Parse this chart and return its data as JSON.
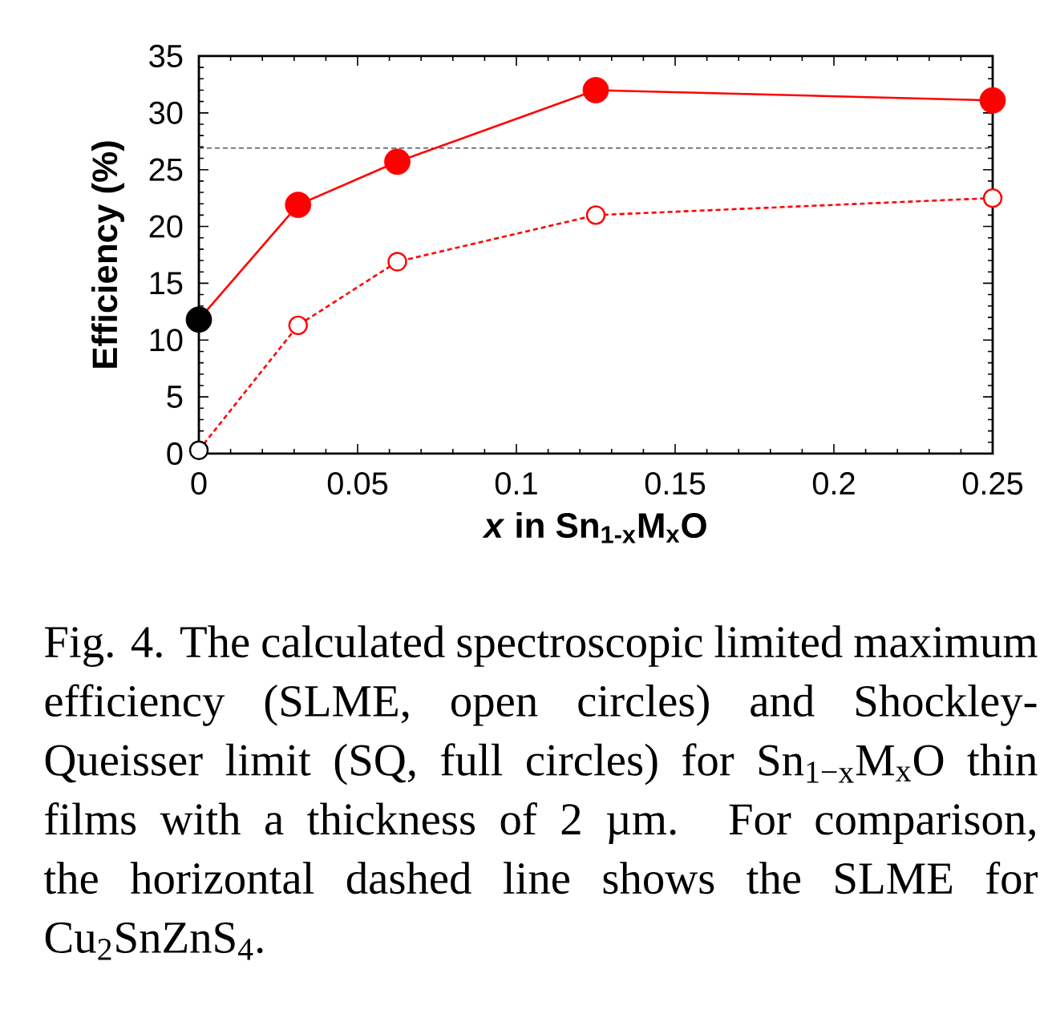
{
  "chart_data": {
    "type": "line",
    "xlabel": "*x* in Sn$_{1-x}$M$_{x}$O",
    "ylabel": "Efficiency (%)",
    "x": [
      0,
      0.03125,
      0.0625,
      0.125,
      0.25
    ],
    "series": [
      {
        "color": "#ff0000",
        "colors": [
          "#000000",
          "#ff0000",
          "#ff0000",
          "#ff0000",
          "#ff0000"
        ],
        "line_style": "solid",
        "values": [
          11.8,
          21.9,
          25.7,
          32.0,
          31.1
        ]
      },
      {
        "color": "#ff0000",
        "colors": [
          "#000000",
          "#ff0000",
          "#ff0000",
          "#ff0000",
          "#ff0000"
        ],
        "line_style": "dashed",
        "values": [
          0.3,
          11.3,
          16.9,
          21.0,
          22.5
        ]
      }
    ],
    "marker": "circle",
    "xlim": [
      0,
      0.25
    ],
    "ylim": [
      0,
      35
    ],
    "xticks": [
      0,
      0.05,
      0.1,
      0.15,
      0.2,
      0.25
    ],
    "yticks": [
      0,
      5,
      10,
      15,
      20,
      25,
      30,
      35
    ],
    "ref_lines": [
      {
        "axis": "y",
        "value": 26.9,
        "color": "#555555",
        "line_style": "dashed"
      }
    ],
    "annotations": [
      "Fig. 4. The calculated spectroscopic limited maximum efficiency (SLME, open circles) and Shockley-Queisser limit (SQ, full circles) for Sn$_{1−x}$M$_{x}$O thin films with a thickness of 2 µm. For comparison, the horizontal dashed line shows the SLME for Cu$_{2}$SnZnS$_{4}$."
    ]
  }
}
